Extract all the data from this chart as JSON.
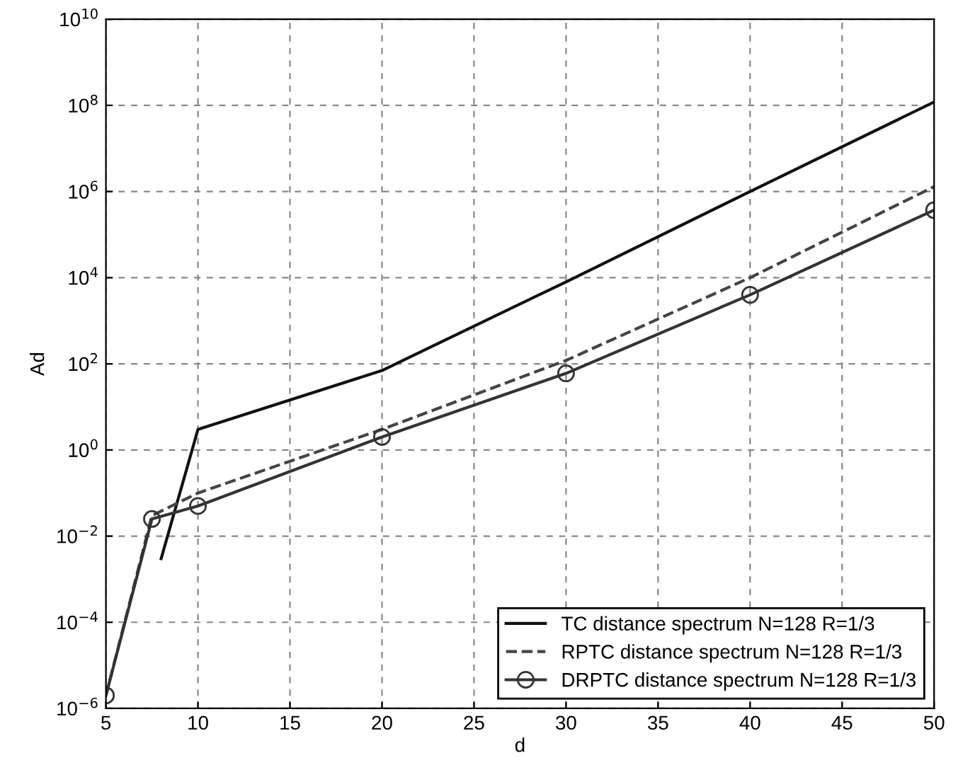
{
  "chart_data": {
    "type": "line",
    "xlabel": "d",
    "ylabel": "Ad",
    "log": "y",
    "xlim": [
      5,
      50
    ],
    "xticks": [
      5,
      10,
      15,
      20,
      25,
      30,
      35,
      40,
      45,
      50
    ],
    "ylim": [
      1e-06,
      10000000000.0
    ],
    "yticks": [
      {
        "value": 1e-06,
        "label": "10$^{−6}$"
      },
      {
        "value": 0.0001,
        "label": "10$^{−4}$"
      },
      {
        "value": 0.01,
        "label": "10$^{−2}$"
      },
      {
        "value": 1,
        "label": "10$^{0}$"
      },
      {
        "value": 100,
        "label": "10$^{2}$"
      },
      {
        "value": 10000.0,
        "label": "10$^{4}$"
      },
      {
        "value": 1000000.0,
        "label": "10$^{6}$"
      },
      {
        "value": 100000000.0,
        "label": "10$^{8}$"
      },
      {
        "value": 10000000000.0,
        "label": "10$^{10}$"
      }
    ],
    "grid": true,
    "legend": "bottom right",
    "series": [
      {
        "name": "TC distance spectrum N=128 R=1/3",
        "color": "#111111",
        "x": [
          8,
          10,
          20,
          30,
          40,
          50
        ],
        "values": [
          0.003,
          3,
          70,
          8000,
          1000000,
          120000000
        ],
        "line_style": "solid",
        "marker": "none"
      },
      {
        "name": "RPTC distance spectrum N=128 R=1/3",
        "color": "#444444",
        "x": [
          5,
          7.5,
          10,
          20,
          30,
          40,
          50
        ],
        "values": [
          2e-06,
          0.03,
          0.1,
          3,
          120,
          10000,
          1300000
        ],
        "line_style": "dashed",
        "marker": "none"
      },
      {
        "name": "DRPTC distance spectrum N=128 R=1/3",
        "color": "#333333",
        "x": [
          5,
          7.5,
          10,
          20,
          30,
          40,
          50
        ],
        "values": [
          2e-06,
          0.025,
          0.05,
          2,
          60,
          4000,
          370000
        ],
        "line_style": "solid",
        "marker": "circle"
      }
    ]
  }
}
